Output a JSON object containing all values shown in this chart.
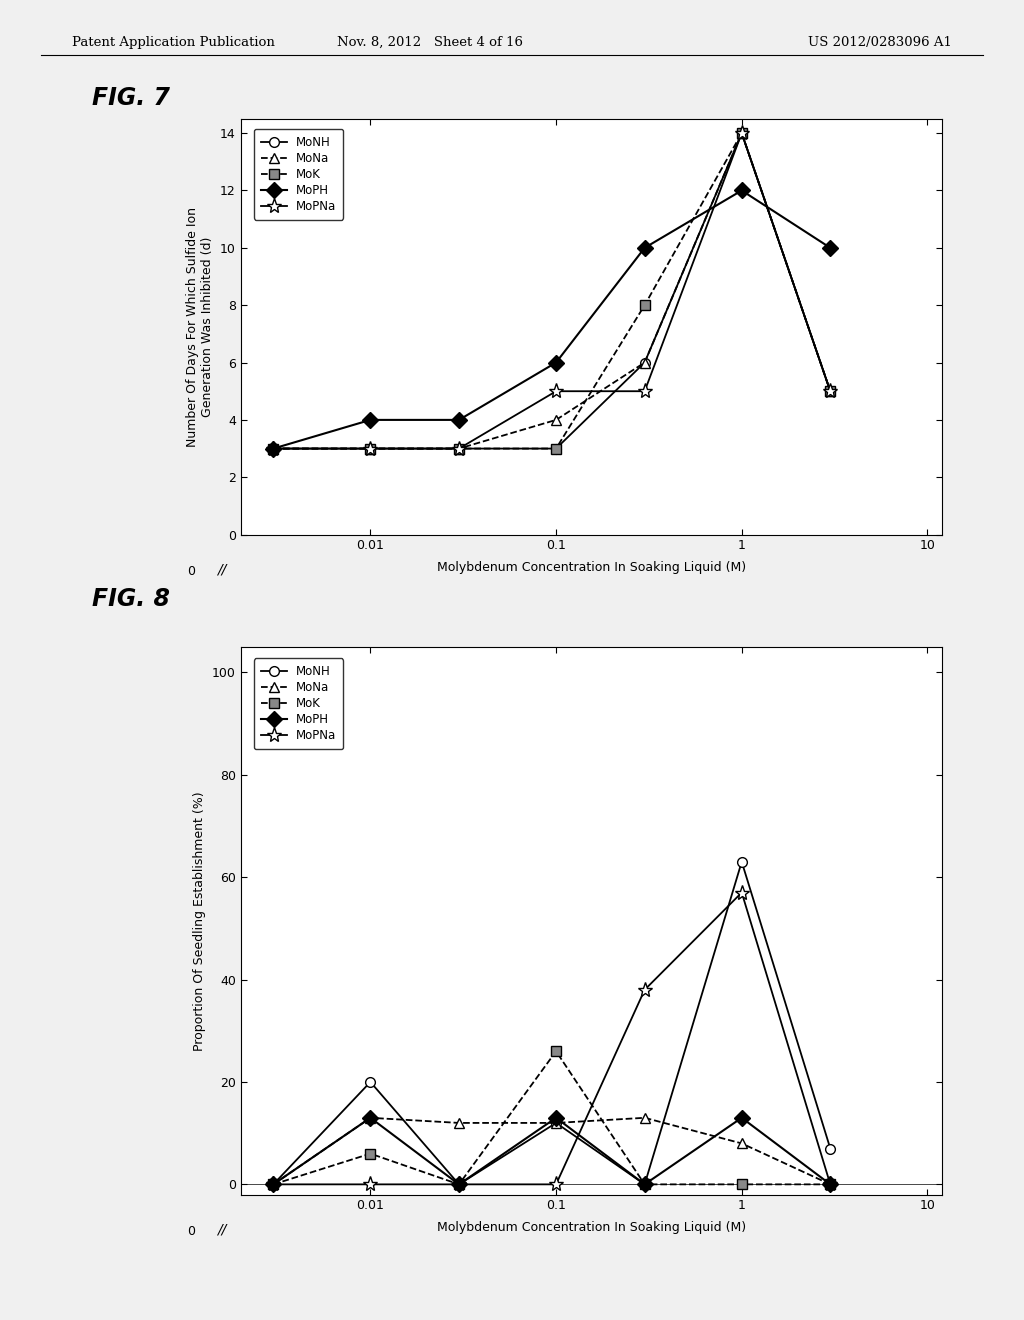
{
  "header_left": "Patent Application Publication",
  "header_mid": "Nov. 8, 2012   Sheet 4 of 16",
  "header_right": "US 2012/0283096 A1",
  "fig7_label": "FIG. 7",
  "fig8_label": "FIG. 8",
  "xlabel": "Molybdenum Concentration In Soaking Liquid (M)",
  "fig7_ylabel": "Number Of Days For Which Sulfide Ion\nGeneration Was Inhibited (d)",
  "fig8_ylabel": "Proportion Of Seedling Establishment (%)",
  "series_names": [
    "MoNH",
    "MoNa",
    "MoK",
    "MoPH",
    "MoPNa"
  ],
  "x_positions": [
    0.003,
    0.01,
    0.03,
    0.1,
    0.3,
    1.0,
    3.0
  ],
  "fig7_data": {
    "MoNH": [
      3,
      3,
      3,
      3,
      6,
      14,
      5
    ],
    "MoNa": [
      3,
      3,
      3,
      4,
      6,
      14,
      5
    ],
    "MoK": [
      3,
      3,
      3,
      3,
      8,
      14,
      5
    ],
    "MoPH": [
      3,
      4,
      4,
      6,
      10,
      12,
      10
    ],
    "MoPNa": [
      3,
      3,
      3,
      5,
      5,
      14,
      5
    ]
  },
  "fig8_data": {
    "MoNH": [
      0,
      20,
      0,
      12,
      0,
      63,
      7
    ],
    "MoNa": [
      0,
      13,
      12,
      12,
      13,
      8,
      0
    ],
    "MoK": [
      0,
      6,
      0,
      26,
      0,
      0,
      0
    ],
    "MoPH": [
      0,
      13,
      0,
      13,
      0,
      13,
      0
    ],
    "MoPNa": [
      0,
      0,
      0,
      0,
      38,
      57,
      0
    ]
  },
  "background_color": "#f0f0f0",
  "plot_bg": "#ffffff"
}
